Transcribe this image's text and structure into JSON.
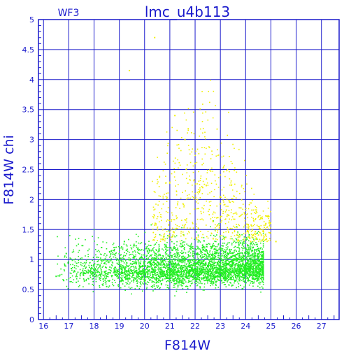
{
  "chart_data": {
    "type": "scatter",
    "title": "lmc_u4b113",
    "subtitle": "WF3",
    "xlabel": "F814W",
    "ylabel": "F814W  chi",
    "xlim": [
      15.8,
      27.7
    ],
    "ylim": [
      0,
      5
    ],
    "xticks": [
      "16",
      "17",
      "18",
      "19",
      "20",
      "21",
      "22",
      "23",
      "24",
      "25",
      "26",
      "27"
    ],
    "yticks": [
      "0",
      "0.5",
      "1",
      "1.5",
      "2",
      "2.5",
      "3",
      "3.5",
      "4",
      "4.5",
      "5"
    ],
    "grid": true,
    "colors": {
      "frame": "#1a1acc",
      "grid": "#1a1acc",
      "text": "#1a1acc",
      "good_stars": "#22ee22",
      "flagged_stars": "#f0f000"
    },
    "series": [
      {
        "color": "#22ee22",
        "points": [
          [
            16.5,
            0.72
          ],
          [
            16.8,
            0.65
          ],
          [
            16.9,
            1.1
          ],
          [
            17.1,
            0.85
          ],
          [
            17.3,
            0.62
          ],
          [
            17.6,
            0.78
          ],
          [
            17.9,
            0.9
          ],
          [
            18.1,
            0.74
          ],
          [
            18.3,
            1.2
          ],
          [
            18.5,
            0.55
          ],
          [
            18.8,
            0.8
          ],
          [
            19.0,
            0.95
          ],
          [
            19.2,
            1.3
          ],
          [
            19.4,
            0.68
          ],
          [
            19.6,
            1.05
          ],
          [
            19.8,
            0.88
          ],
          [
            20.0,
            0.76
          ],
          [
            20.2,
            1.15
          ],
          [
            20.4,
            0.92
          ],
          [
            20.6,
            0.7
          ],
          [
            20.8,
            1.25
          ],
          [
            21.0,
            0.84
          ],
          [
            21.2,
            1.05
          ],
          [
            21.4,
            0.66
          ],
          [
            21.6,
            0.98
          ],
          [
            21.8,
            1.18
          ],
          [
            22.0,
            0.9
          ],
          [
            22.2,
            0.75
          ],
          [
            22.4,
            1.08
          ],
          [
            22.6,
            0.82
          ],
          [
            22.8,
            0.7
          ],
          [
            23.0,
            0.95
          ],
          [
            23.2,
            0.78
          ],
          [
            23.4,
            0.88
          ],
          [
            23.6,
            0.72
          ],
          [
            23.8,
            0.8
          ],
          [
            24.0,
            0.68
          ],
          [
            24.3,
            0.75
          ],
          [
            24.6,
            0.85
          ]
        ]
      },
      {
        "color": "#f0f000",
        "points": [
          [
            19.4,
            4.15
          ],
          [
            20.4,
            4.7
          ],
          [
            21.2,
            3.4
          ],
          [
            21.6,
            3.0
          ],
          [
            22.0,
            2.6
          ],
          [
            22.3,
            2.2
          ],
          [
            22.6,
            1.9
          ],
          [
            22.9,
            1.7
          ],
          [
            23.3,
            1.5
          ],
          [
            23.7,
            1.4
          ],
          [
            24.2,
            1.3
          ],
          [
            24.8,
            1.6
          ],
          [
            25.2,
            1.3
          ]
        ]
      }
    ]
  }
}
